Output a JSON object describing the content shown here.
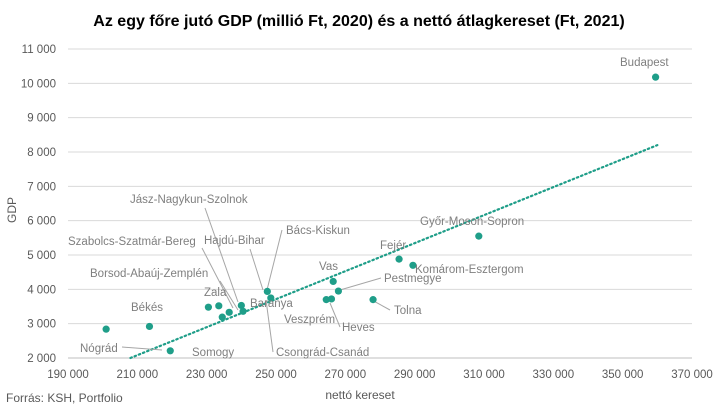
{
  "chart_data": {
    "type": "scatter",
    "title": "Az egy főre jutó GDP (millió Ft, 2020) és a nettó átlagkereset (Ft, 2021)",
    "xlabel": "nettó kereset",
    "ylabel": "GDP",
    "xlim": [
      190000,
      370000
    ],
    "ylim": [
      2000,
      11000
    ],
    "x_ticks": [
      "190 000",
      "210 000",
      "230 000",
      "250 000",
      "270 000",
      "290 000",
      "310 000",
      "330 000",
      "350 000",
      "370 000"
    ],
    "y_ticks": [
      "2 000",
      "3 000",
      "4 000",
      "5 000",
      "6 000",
      "7 000",
      "8 000",
      "9 000",
      "10 000",
      "11 000"
    ],
    "grid": "horizontal",
    "point_color": "#1f9e89",
    "trendline": {
      "style": "dotted",
      "color": "#1f9e89",
      "x": [
        208000,
        360000
      ],
      "y": [
        2000,
        8200
      ]
    },
    "points": [
      {
        "name": "Budapest",
        "x": 359500,
        "y": 10180
      },
      {
        "name": "Győr-Moson-Sopron",
        "x": 308500,
        "y": 5550
      },
      {
        "name": "Fejér",
        "x": 285500,
        "y": 4880
      },
      {
        "name": "Komárom-Esztergom",
        "x": 289500,
        "y": 4700
      },
      {
        "name": "Pest megye",
        "x": 268000,
        "y": 3950
      },
      {
        "name": "Vas",
        "x": 266500,
        "y": 4230
      },
      {
        "name": "Tolna",
        "x": 278000,
        "y": 3700
      },
      {
        "name": "Veszprém",
        "x": 264500,
        "y": 3700
      },
      {
        "name": "Heves",
        "x": 266000,
        "y": 3720
      },
      {
        "name": "Bács-Kiskun",
        "x": 248500,
        "y": 3750
      },
      {
        "name": "Jász-Nagykun-Szolnok",
        "x": 247500,
        "y": 3940
      },
      {
        "name": "Hajdú-Bihar",
        "x": 240000,
        "y": 3530
      },
      {
        "name": "Baranya",
        "x": 240500,
        "y": 3360
      },
      {
        "name": "Csongrád-Csanád",
        "x": 236500,
        "y": 3330
      },
      {
        "name": "Zala",
        "x": 233500,
        "y": 3520
      },
      {
        "name": "Somogy",
        "x": 234500,
        "y": 3190
      },
      {
        "name": "Borsod-Abaúj-Zemplén",
        "x": 230500,
        "y": 3480
      },
      {
        "name": "Szabolcs-Szatmár-Bereg",
        "x": 201000,
        "y": 2840
      },
      {
        "name": "Békés",
        "x": 213500,
        "y": 2920
      },
      {
        "name": "Nógrád",
        "x": 219500,
        "y": 2210
      }
    ]
  },
  "labels": [
    {
      "text": "Budapest"
    },
    {
      "text": "Győr-Moson-Sopron"
    },
    {
      "text": "Fejér"
    },
    {
      "text": "Komárom-Esztergom"
    },
    {
      "text": "Pestmegye"
    },
    {
      "text": "Vas"
    },
    {
      "text": "Tolna"
    },
    {
      "text": "Veszprém"
    },
    {
      "text": "Heves"
    },
    {
      "text": "Bács-Kiskun"
    },
    {
      "text": "Jász-Nagykun-Szolnok"
    },
    {
      "text": "Hajdú-Bihar"
    },
    {
      "text": "Baranya"
    },
    {
      "text": "Csongrád-Csanád"
    },
    {
      "text": "Zala"
    },
    {
      "text": "Somogy"
    },
    {
      "text": "Borsod-Abaúj-Zemplén"
    },
    {
      "text": "Szabolcs-Szatmár-Bereg"
    },
    {
      "text": "Békés"
    },
    {
      "text": "Nógrád"
    }
  ],
  "source": "Forrás: KSH, Portfolio"
}
